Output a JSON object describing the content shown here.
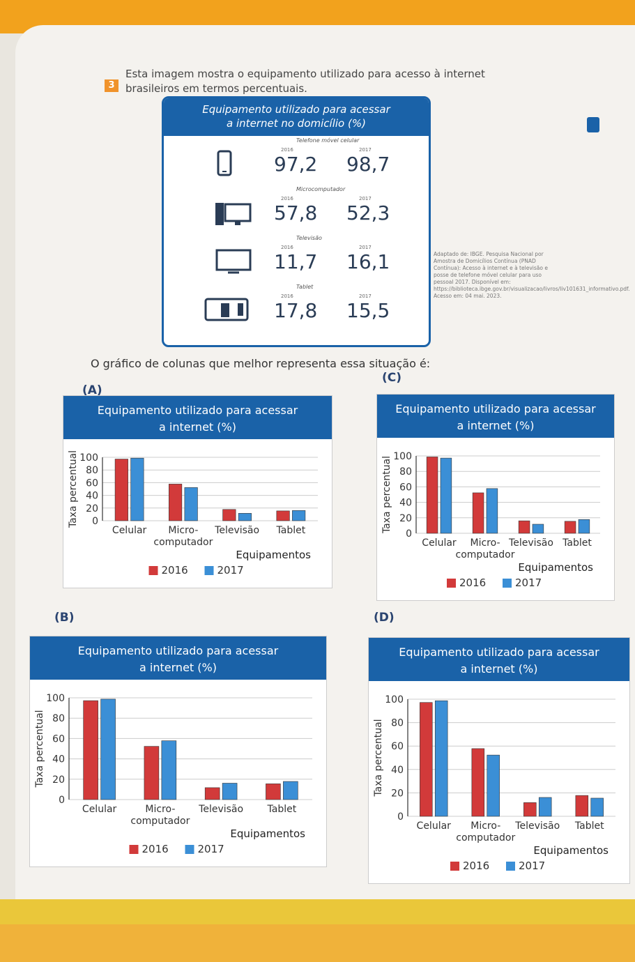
{
  "question": {
    "number": "3",
    "line1": "Esta imagem mostra o equipamento utilizado para acesso à internet",
    "line2": "brasileiros em termos percentuais.",
    "prompt": "O gráfico de colunas que melhor representa essa situação é:"
  },
  "infographic": {
    "title_line1": "Equipamento utilizado para acessar",
    "title_line2": "a internet no domicílio (%)",
    "items": [
      {
        "label": "Telefone móvel celular",
        "year1": "2016",
        "year2": "2017",
        "value1": "97,2",
        "value2": "98,7",
        "icon": "phone-icon"
      },
      {
        "label": "Microcomputador",
        "year1": "2016",
        "year2": "2017",
        "value1": "57,8",
        "value2": "52,3",
        "icon": "desktop-icon"
      },
      {
        "label": "Televisão",
        "year1": "2016",
        "year2": "2017",
        "value1": "11,7",
        "value2": "16,1",
        "icon": "tv-icon"
      },
      {
        "label": "Tablet",
        "year1": "2016",
        "year2": "2017",
        "value1": "17,8",
        "value2": "15,5",
        "icon": "tablet-icon"
      }
    ],
    "source": "Adaptado de: IBGE. Pesquisa Nacional por Amostra de Domicílios Contínua (PNAD Contínua): Acesso à internet e à televisão e posse de telefone móvel celular para uso pessoal 2017. Disponível em: https://biblioteca.ibge.gov.br/visualizacao/livros/liv101631_informativo.pdf. Acesso em: 04 mai. 2023."
  },
  "colors": {
    "s2016": "#d23a3a",
    "s2017": "#3b8fd6",
    "head": "#1a62a8"
  },
  "chart_data": [
    {
      "option": "(A)",
      "type": "bar",
      "title": "Equipamento utilizado para acessar a internet (%)",
      "ylabel": "Taxa percentual",
      "xlabel": "Equipamentos",
      "categories": [
        "Celular",
        "Micro- computador",
        "Televisão",
        "Tablet"
      ],
      "yticks": [
        0,
        20,
        40,
        60,
        80,
        100
      ],
      "ylim": [
        0,
        100
      ],
      "series": [
        {
          "name": "2016",
          "values": [
            97.2,
            57.8,
            17.8,
            15.5
          ]
        },
        {
          "name": "2017",
          "values": [
            98.7,
            52.3,
            11.7,
            16.1
          ]
        }
      ]
    },
    {
      "option": "(B)",
      "type": "bar",
      "title": "Equipamento utilizado para acessar a internet (%)",
      "ylabel": "Taxa percentual",
      "xlabel": "Equipamentos",
      "categories": [
        "Celular",
        "Micro- computador",
        "Televisão",
        "Tablet"
      ],
      "yticks": [
        0,
        20,
        40,
        60,
        80,
        100
      ],
      "ylim": [
        0,
        100
      ],
      "series": [
        {
          "name": "2016",
          "values": [
            97.2,
            52.3,
            11.7,
            15.5
          ]
        },
        {
          "name": "2017",
          "values": [
            98.7,
            57.8,
            16.1,
            17.8
          ]
        }
      ]
    },
    {
      "option": "(C)",
      "type": "bar",
      "title": "Equipamento utilizado para acessar a internet (%)",
      "ylabel": "Taxa percentual",
      "xlabel": "Equipamentos",
      "categories": [
        "Celular",
        "Micro- computador",
        "Televisão",
        "Tablet"
      ],
      "yticks": [
        0,
        20,
        40,
        60,
        80,
        100
      ],
      "ylim": [
        0,
        100
      ],
      "series": [
        {
          "name": "2016",
          "values": [
            98.7,
            52.3,
            16.1,
            15.5
          ]
        },
        {
          "name": "2017",
          "values": [
            97.2,
            57.8,
            11.7,
            17.8
          ]
        }
      ]
    },
    {
      "option": "(D)",
      "type": "bar",
      "title": "Equipamento utilizado para acessar a internet (%)",
      "ylabel": "Taxa percentual",
      "xlabel": "Equipamentos",
      "categories": [
        "Celular",
        "Micro- computador",
        "Televisão",
        "Tablet"
      ],
      "yticks": [
        0,
        20,
        40,
        60,
        80,
        100
      ],
      "ylim": [
        0,
        100
      ],
      "series": [
        {
          "name": "2016",
          "values": [
            97.2,
            57.8,
            11.7,
            17.8
          ]
        },
        {
          "name": "2017",
          "values": [
            98.7,
            52.3,
            16.1,
            15.5
          ]
        }
      ]
    }
  ]
}
